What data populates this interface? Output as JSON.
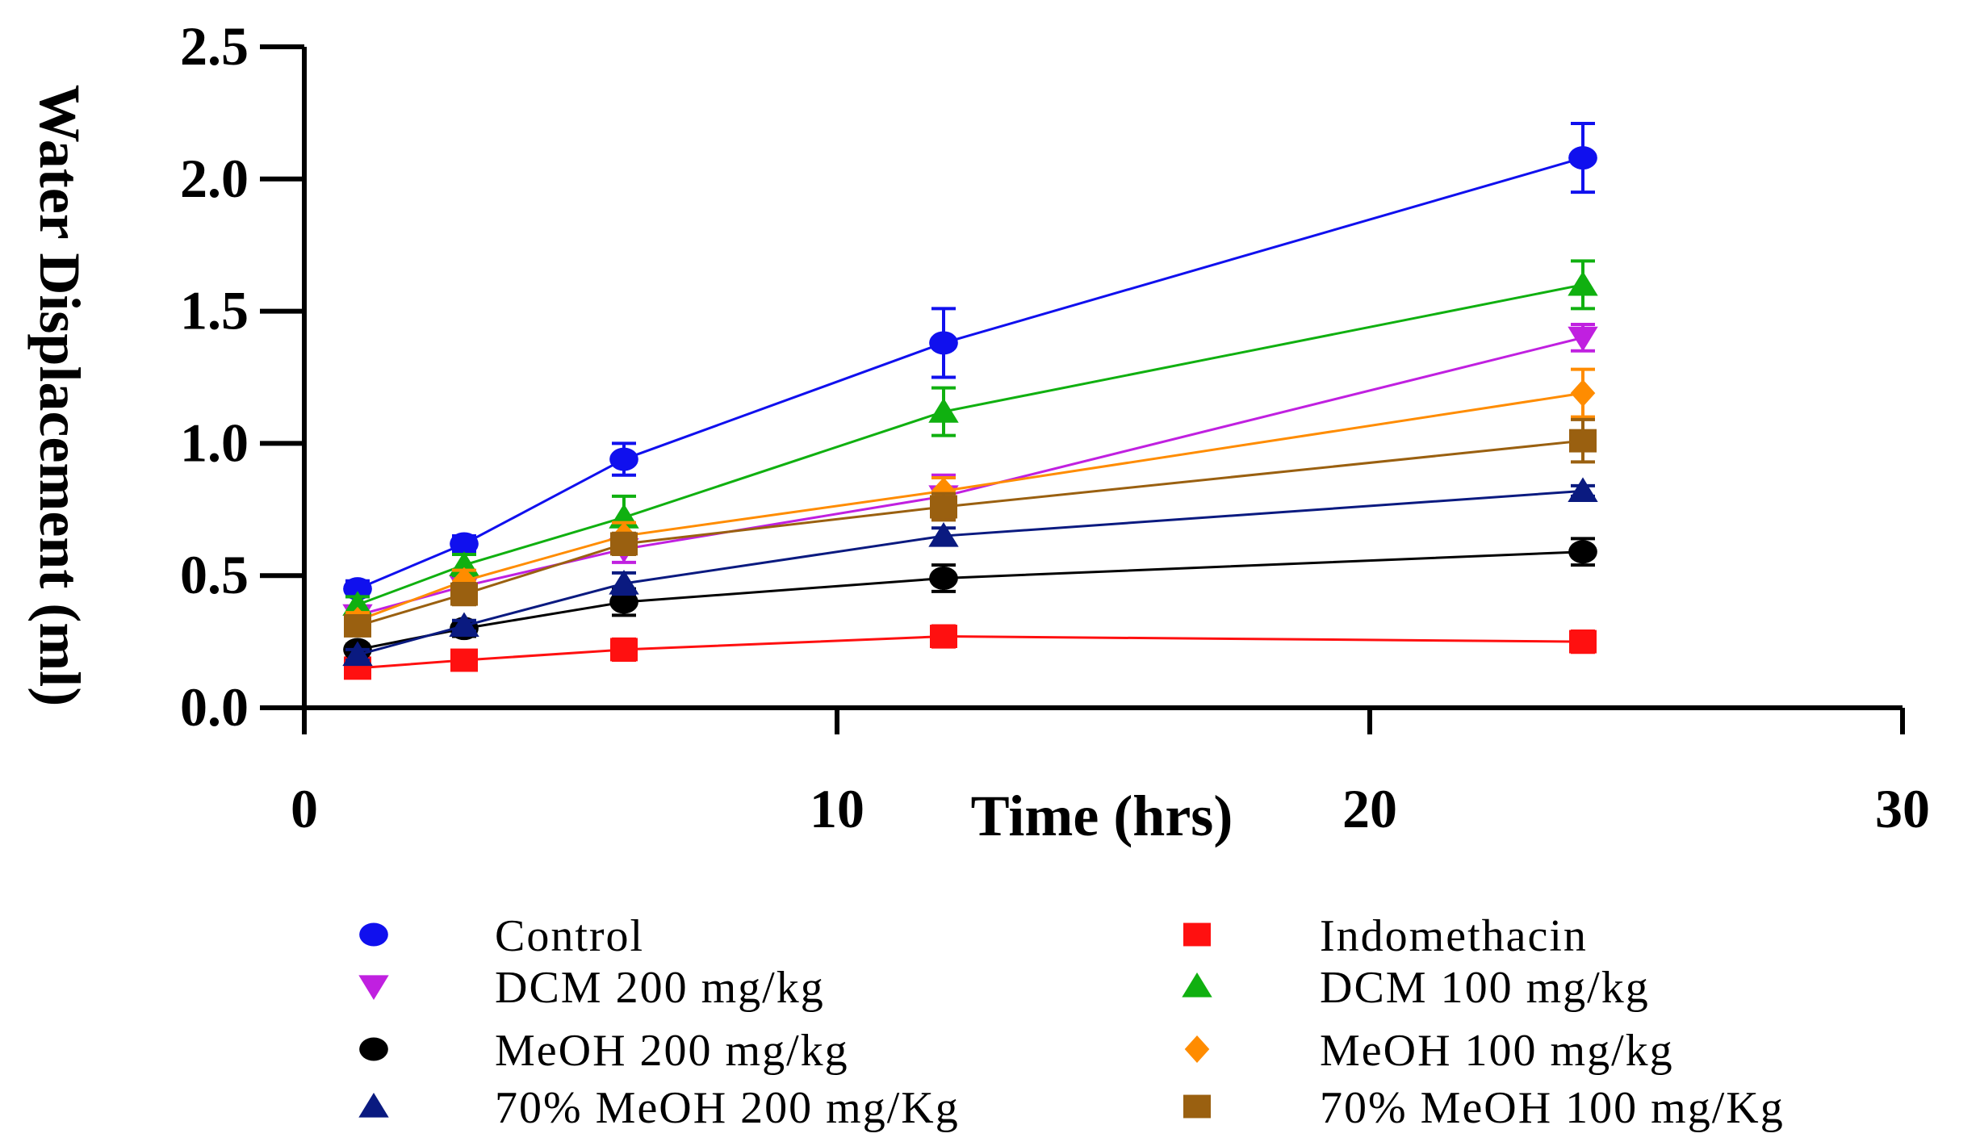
{
  "chart_data": {
    "type": "line",
    "title": "",
    "xlabel": "Time (hrs)",
    "ylabel": "Water Displacement (ml)",
    "xlim": [
      0,
      30
    ],
    "ylim": [
      0,
      2.5
    ],
    "xticks": [
      0,
      10,
      20,
      30
    ],
    "yticks": [
      "0.0",
      "0.5",
      "1.0",
      "1.5",
      "2.0",
      "2.5"
    ],
    "x": [
      1,
      3,
      6,
      12,
      24
    ],
    "legend_position": "bottom",
    "series": [
      {
        "name": "Control",
        "color": "#1010ee",
        "marker": "circle",
        "values": [
          0.45,
          0.62,
          0.94,
          1.38,
          2.08
        ],
        "errors": [
          0.03,
          0.03,
          0.06,
          0.13,
          0.13
        ]
      },
      {
        "name": "Indomethacin",
        "color": "#ff1010",
        "marker": "square",
        "values": [
          0.15,
          0.18,
          0.22,
          0.27,
          0.25
        ],
        "errors": [
          0.02,
          0.02,
          0.04,
          0.04,
          0.04
        ]
      },
      {
        "name": "DCM 200 mg/kg",
        "color": "#c020e0",
        "marker": "triangle-down",
        "values": [
          0.35,
          0.46,
          0.6,
          0.8,
          1.4
        ],
        "errors": [
          0.03,
          0.04,
          0.05,
          0.08,
          0.05
        ]
      },
      {
        "name": "DCM 100 mg/kg",
        "color": "#10b010",
        "marker": "triangle-up",
        "values": [
          0.39,
          0.54,
          0.72,
          1.12,
          1.6
        ],
        "errors": [
          0.03,
          0.04,
          0.08,
          0.09,
          0.09
        ]
      },
      {
        "name": "MeOH 200 mg/kg",
        "color": "#000000",
        "marker": "circle",
        "values": [
          0.22,
          0.3,
          0.4,
          0.49,
          0.59
        ],
        "errors": [
          0.02,
          0.03,
          0.05,
          0.05,
          0.05
        ]
      },
      {
        "name": "MeOH 100 mg/kg",
        "color": "#ff8c00",
        "marker": "diamond",
        "values": [
          0.33,
          0.48,
          0.65,
          0.82,
          1.19
        ],
        "errors": [
          0.03,
          0.04,
          0.05,
          0.05,
          0.09
        ]
      },
      {
        "name": "70% MeOH 200 mg/Kg",
        "color": "#0a1a80",
        "marker": "triangle-up",
        "values": [
          0.2,
          0.31,
          0.47,
          0.65,
          0.82
        ],
        "errors": [
          0.02,
          0.02,
          0.04,
          0.03,
          0.02
        ]
      },
      {
        "name": "70% MeOH 100 mg/Kg",
        "color": "#9a6010",
        "marker": "square",
        "values": [
          0.31,
          0.43,
          0.62,
          0.76,
          1.01
        ],
        "errors": [
          0.03,
          0.04,
          0.04,
          0.05,
          0.08
        ]
      }
    ]
  }
}
